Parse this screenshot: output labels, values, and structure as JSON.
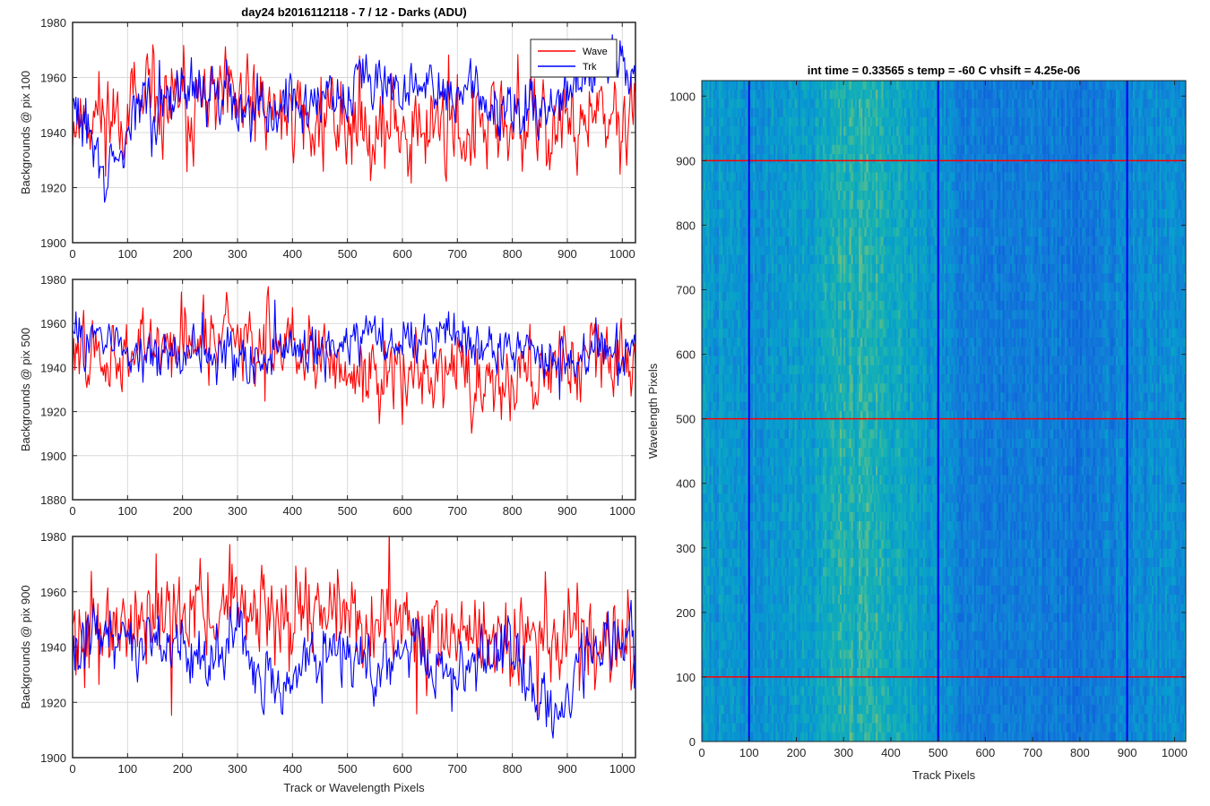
{
  "chart_data": [
    {
      "type": "line",
      "title": "day24 b2016112118 - 7 / 12 - Darks (ADU)",
      "xlabel": "",
      "ylabel": "Backgrounds @ pix 100",
      "xlim": [
        0,
        1024
      ],
      "ylim": [
        1900,
        1980
      ],
      "xticks": [
        0,
        100,
        200,
        300,
        400,
        500,
        600,
        700,
        800,
        900,
        1000
      ],
      "yticks": [
        1900,
        1920,
        1940,
        1960,
        1980
      ],
      "grid": true,
      "legend": "top-right",
      "series": [
        {
          "name": "Wave",
          "color": "#ff0000",
          "seed": 11,
          "noise": 8,
          "trend": [
            [
              0,
              1945
            ],
            [
              100,
              1948
            ],
            [
              200,
              1950
            ],
            [
              300,
              1950
            ],
            [
              400,
              1947
            ],
            [
              500,
              1944
            ],
            [
              600,
              1942
            ],
            [
              700,
              1941
            ],
            [
              800,
              1942
            ],
            [
              900,
              1943
            ],
            [
              1024,
              1943
            ]
          ]
        },
        {
          "name": "Trk",
          "color": "#0000ff",
          "seed": 29,
          "noise": 5,
          "trend": [
            [
              0,
              1948
            ],
            [
              30,
              1942
            ],
            [
              55,
              1925
            ],
            [
              80,
              1925
            ],
            [
              110,
              1948
            ],
            [
              200,
              1955
            ],
            [
              300,
              1952
            ],
            [
              360,
              1948
            ],
            [
              420,
              1952
            ],
            [
              500,
              1955
            ],
            [
              520,
              1965
            ],
            [
              560,
              1958
            ],
            [
              600,
              1955
            ],
            [
              700,
              1955
            ],
            [
              760,
              1950
            ],
            [
              820,
              1948
            ],
            [
              880,
              1950
            ],
            [
              920,
              1962
            ],
            [
              1000,
              1965
            ],
            [
              1024,
              1955
            ]
          ]
        }
      ]
    },
    {
      "type": "line",
      "title": "",
      "xlabel": "",
      "ylabel": "Backgrounds @ pix 500",
      "xlim": [
        0,
        1024
      ],
      "ylim": [
        1880,
        1980
      ],
      "xticks": [
        0,
        100,
        200,
        300,
        400,
        500,
        600,
        700,
        800,
        900,
        1000
      ],
      "yticks": [
        1880,
        1900,
        1920,
        1940,
        1960,
        1980
      ],
      "grid": true,
      "series": [
        {
          "name": "Wave",
          "color": "#ff0000",
          "seed": 47,
          "noise": 8,
          "trend": [
            [
              0,
              1948
            ],
            [
              100,
              1945
            ],
            [
              200,
              1952
            ],
            [
              300,
              1955
            ],
            [
              400,
              1950
            ],
            [
              500,
              1942
            ],
            [
              600,
              1935
            ],
            [
              700,
              1935
            ],
            [
              800,
              1935
            ],
            [
              850,
              1938
            ],
            [
              900,
              1945
            ],
            [
              1024,
              1945
            ]
          ]
        },
        {
          "name": "Trk",
          "color": "#0000ff",
          "seed": 83,
          "noise": 5,
          "trend": [
            [
              0,
              1955
            ],
            [
              100,
              1950
            ],
            [
              200,
              1945
            ],
            [
              300,
              1945
            ],
            [
              400,
              1945
            ],
            [
              500,
              1952
            ],
            [
              600,
              1955
            ],
            [
              700,
              1955
            ],
            [
              800,
              1950
            ],
            [
              900,
              1942
            ],
            [
              1024,
              1950
            ]
          ]
        }
      ]
    },
    {
      "type": "line",
      "title": "",
      "xlabel": "Track or Wavelength Pixels",
      "ylabel": "Backgrounds @ pix 900",
      "xlim": [
        0,
        1024
      ],
      "ylim": [
        1900,
        1980
      ],
      "xticks": [
        0,
        100,
        200,
        300,
        400,
        500,
        600,
        700,
        800,
        900,
        1000
      ],
      "yticks": [
        1900,
        1920,
        1940,
        1960,
        1980
      ],
      "grid": true,
      "series": [
        {
          "name": "Wave",
          "color": "#ff0000",
          "seed": 101,
          "noise": 8,
          "trend": [
            [
              0,
              1945
            ],
            [
              100,
              1950
            ],
            [
              200,
              1955
            ],
            [
              300,
              1955
            ],
            [
              400,
              1955
            ],
            [
              500,
              1952
            ],
            [
              600,
              1948
            ],
            [
              700,
              1945
            ],
            [
              800,
              1945
            ],
            [
              900,
              1945
            ],
            [
              1024,
              1942
            ]
          ]
        },
        {
          "name": "Trk",
          "color": "#0000ff",
          "seed": 131,
          "noise": 5,
          "trend": [
            [
              0,
              1940
            ],
            [
              50,
              1945
            ],
            [
              100,
              1942
            ],
            [
              200,
              1940
            ],
            [
              250,
              1935
            ],
            [
              300,
              1948
            ],
            [
              330,
              1932
            ],
            [
              380,
              1925
            ],
            [
              420,
              1935
            ],
            [
              500,
              1938
            ],
            [
              560,
              1930
            ],
            [
              600,
              1940
            ],
            [
              700,
              1930
            ],
            [
              740,
              1935
            ],
            [
              800,
              1938
            ],
            [
              860,
              1915
            ],
            [
              880,
              1912
            ],
            [
              920,
              1938
            ],
            [
              1000,
              1945
            ],
            [
              1024,
              1940
            ]
          ]
        }
      ]
    },
    {
      "type": "heatmap",
      "title": "int time = 0.33565 s    temp = -60 C    vhsift = 4.25e-06",
      "xlabel": "Track Pixels",
      "ylabel": "Wavelength Pixels",
      "xlim": [
        0,
        1024
      ],
      "ylim": [
        0,
        1024
      ],
      "xticks": [
        0,
        100,
        200,
        300,
        400,
        500,
        600,
        700,
        800,
        900,
        1000
      ],
      "yticks": [
        0,
        100,
        200,
        300,
        400,
        500,
        600,
        700,
        800,
        900,
        1000
      ],
      "colormap": "parula",
      "column_profile": [
        [
          0,
          0.55
        ],
        [
          100,
          0.5
        ],
        [
          200,
          0.55
        ],
        [
          300,
          0.68
        ],
        [
          350,
          0.72
        ],
        [
          420,
          0.62
        ],
        [
          500,
          0.48
        ],
        [
          600,
          0.38
        ],
        [
          700,
          0.4
        ],
        [
          800,
          0.35
        ],
        [
          900,
          0.45
        ],
        [
          1024,
          0.48
        ]
      ],
      "vertical_markers": {
        "color": "#0000ff",
        "x": [
          100,
          500,
          900
        ]
      },
      "horizontal_markers": {
        "color": "#ff0000",
        "y": [
          100,
          500,
          900
        ]
      }
    }
  ],
  "colors": {
    "wave": "#ff0000",
    "trk": "#0000ff",
    "grid": "#d9d9d9",
    "axis": "#262626"
  }
}
